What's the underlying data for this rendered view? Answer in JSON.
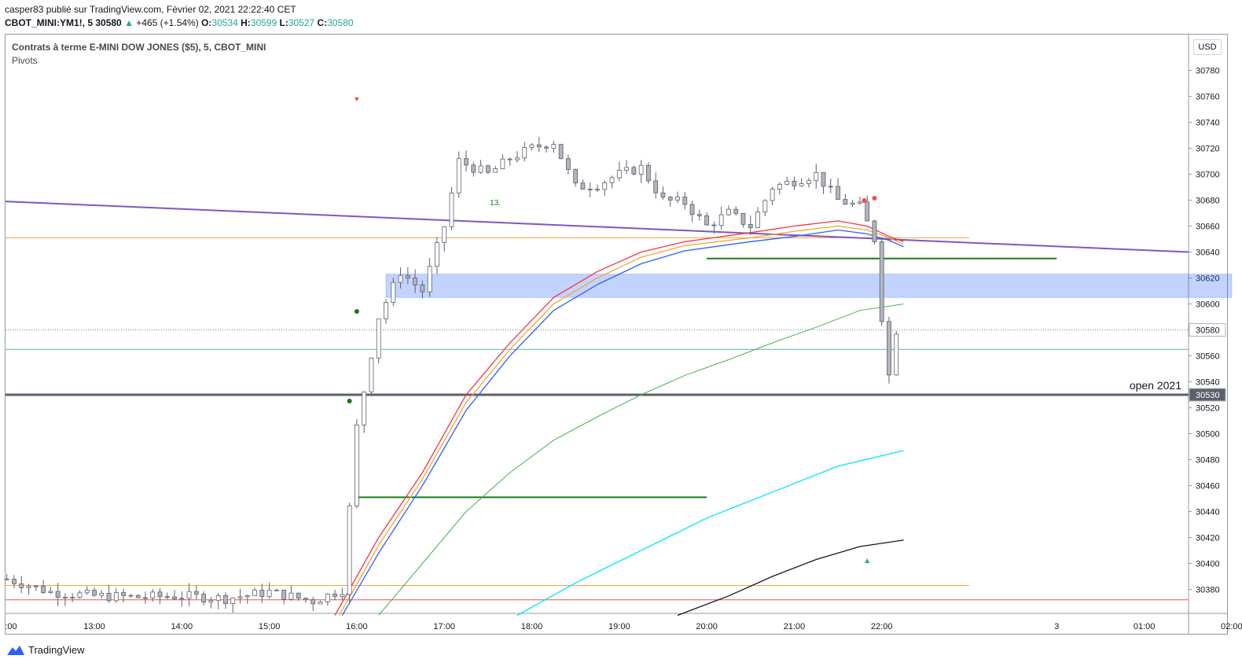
{
  "header": {
    "line1": "casper83 publié sur TradingView.com, Février 02, 2021 22:22:40 CET",
    "ticker": "CBOT_MINI:YM1!, 5",
    "last": "30580",
    "change": "+465 (+1.54%)",
    "o_label": "O:",
    "o_value": "30534",
    "h_label": "H:",
    "h_value": "30599",
    "l_label": "L:",
    "l_value": "30527",
    "c_label": "C:",
    "c_value": "30580"
  },
  "legend": {
    "symbol": "Contrats à terme E-MINI DOW JONES ($5), 5, CBOT_MINI",
    "indicator": "Pivots"
  },
  "currency_button": "USD",
  "footer": {
    "brand": "TradingView"
  },
  "annotations": {
    "open_label": "open 2021",
    "count_label": "13."
  },
  "colors": {
    "up": "#26a69a",
    "down": "#ef5350",
    "candle": "#b2b5be",
    "ema_red": "#f23645",
    "ema_orange": "#f7a436",
    "ema_blue": "#2962ff",
    "ma_green": "#4caf50",
    "ma_cyan": "#00e5ff",
    "ma_black": "#131722",
    "trend": "#7e57c2",
    "zone": "#2962ff"
  },
  "chart_data": {
    "type": "candlestick",
    "title": "Contrats à terme E-MINI DOW JONES ($5), 5, CBOT_MINI",
    "ylim": [
      30360,
      30800
    ],
    "y_ticks": [
      30380,
      30400,
      30420,
      30440,
      30460,
      30480,
      30500,
      30520,
      30540,
      30560,
      30580,
      30600,
      30620,
      30640,
      30660,
      30680,
      30700,
      30720,
      30740,
      30760,
      30780
    ],
    "x_ticks": [
      ":00",
      "13:00",
      "14:00",
      "15:00",
      "16:00",
      "17:00",
      "18:00",
      "19:00",
      "20:00",
      "21:00",
      "22:00",
      "3",
      "01:00",
      "02:00"
    ],
    "price_labels": [
      {
        "value": 30580,
        "text": "30580"
      },
      {
        "value": 30530,
        "text": "30530"
      }
    ],
    "levels": [
      {
        "name": "open 2021",
        "value": 30530
      },
      {
        "name": "orange",
        "value": 30651
      },
      {
        "name": "cyan",
        "value": 30565
      },
      {
        "name": "dotted",
        "value": 30580
      },
      {
        "name": "orange-low",
        "value": 30383
      },
      {
        "name": "red-low",
        "value": 30372
      }
    ],
    "zone": {
      "from_time": "16:20",
      "to_time": "02:00",
      "low": 30605,
      "high": 30623
    },
    "segments": [
      {
        "from_time": "16:00",
        "to_time": "20:00",
        "value": 30451
      },
      {
        "from_time": "20:00",
        "to_time": "3",
        "value": 30635
      }
    ],
    "trendline": {
      "from": [
        "12:00",
        30679
      ],
      "to": [
        "02:30",
        30640
      ]
    },
    "candles_summary": {
      "open_session": "15:45",
      "high": 30740,
      "low": 30370,
      "last": 30580
    }
  }
}
